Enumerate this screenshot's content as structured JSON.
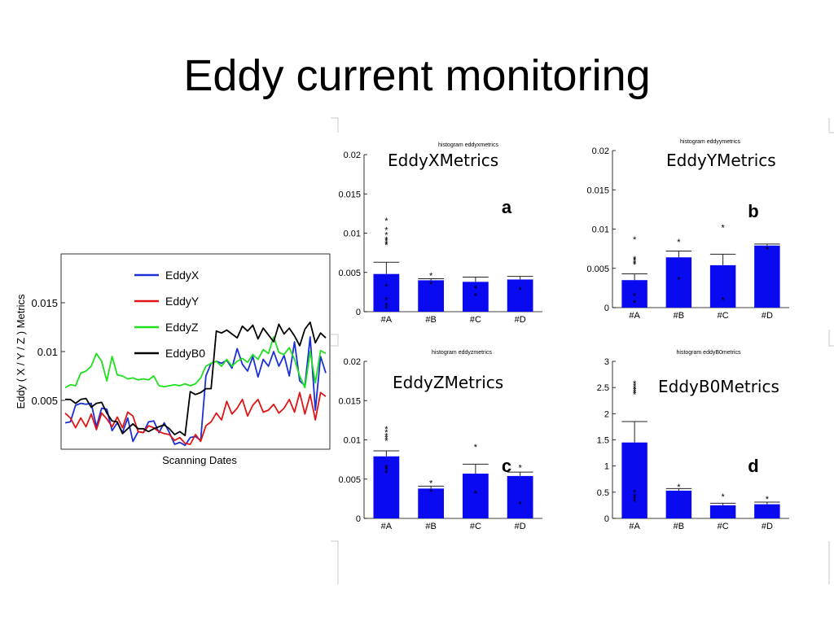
{
  "slide": {
    "title": "Eddy current monitoring"
  },
  "colors": {
    "eddyx": "#1a2fd6",
    "eddyy": "#e01414",
    "eddyz": "#1ee01e",
    "eddyb0": "#000000",
    "bar": "#0a0af0"
  },
  "chart_data": [
    {
      "type": "line",
      "title": "",
      "xlabel": "Scanning Dates",
      "ylabel": "Eddy ( X / Y / Z ) Metrics",
      "yticks": [
        0.005,
        0.01,
        0.015
      ],
      "yticklabels": [
        "0.005",
        "0.01",
        "0.015"
      ],
      "ylim": [
        0,
        0.02
      ],
      "legend_position": "top-center",
      "grid": false,
      "series": [
        {
          "name": "EddyX",
          "color": "#1a2fd6",
          "values": [
            0.0027,
            0.0028,
            0.0045,
            0.0047,
            0.0046,
            0.0047,
            0.0023,
            0.0042,
            0.0041,
            0.0019,
            0.0027,
            0.0017,
            0.0032,
            0.0008,
            0.0018,
            0.0017,
            0.0028,
            0.0029,
            0.0017,
            0.0027,
            0.0017,
            0.0005,
            0.0007,
            0.0004,
            0.0012,
            0.0013,
            0.0009,
            0.0075,
            0.0088,
            0.009,
            0.0088,
            0.0091,
            0.0083,
            0.0103,
            0.0087,
            0.008,
            0.0095,
            0.0074,
            0.0092,
            0.0085,
            0.01,
            0.0085,
            0.0096,
            0.0075,
            0.011,
            0.007,
            0.0065,
            0.0115,
            0.004,
            0.0095,
            0.0078
          ]
        },
        {
          "name": "EddyY",
          "color": "#e01414",
          "values": [
            0.0037,
            0.0032,
            0.0022,
            0.0032,
            0.0023,
            0.0036,
            0.002,
            0.0037,
            0.0031,
            0.0023,
            0.0033,
            0.0022,
            0.0038,
            0.0034,
            0.0018,
            0.0017,
            0.0024,
            0.0022,
            0.0018,
            0.0016,
            0.0015,
            0.0009,
            0.0012,
            0.0006,
            0.0005,
            0.0015,
            0.0008,
            0.0024,
            0.0028,
            0.0037,
            0.003,
            0.0049,
            0.0036,
            0.0042,
            0.0051,
            0.0034,
            0.0045,
            0.0051,
            0.0038,
            0.004,
            0.0046,
            0.0037,
            0.0042,
            0.0051,
            0.0038,
            0.0058,
            0.0036,
            0.0056,
            0.003,
            0.0058,
            0.0054
          ]
        },
        {
          "name": "EddyZ",
          "color": "#1ee01e",
          "values": [
            0.0063,
            0.0066,
            0.0065,
            0.0078,
            0.008,
            0.0085,
            0.0098,
            0.009,
            0.007,
            0.0095,
            0.0076,
            0.0075,
            0.0072,
            0.0073,
            0.0071,
            0.0072,
            0.0071,
            0.0075,
            0.0065,
            0.0064,
            0.0065,
            0.0066,
            0.0065,
            0.0067,
            0.0065,
            0.0067,
            0.0073,
            0.0085,
            0.0088,
            0.009,
            0.0085,
            0.0092,
            0.0085,
            0.009,
            0.0093,
            0.0089,
            0.0097,
            0.0092,
            0.0102,
            0.0098,
            0.0115,
            0.0099,
            0.0097,
            0.0104,
            0.0092,
            0.0075,
            0.0063,
            0.01,
            0.0068,
            0.0101,
            0.0098
          ]
        },
        {
          "name": "EddyB0",
          "color": "#000000",
          "values": [
            0.0051,
            0.0051,
            0.0047,
            0.0051,
            0.0052,
            0.0043,
            0.0047,
            0.0048,
            0.0037,
            0.0029,
            0.0028,
            0.0016,
            0.0021,
            0.0026,
            0.0021,
            0.0021,
            0.0018,
            0.0021,
            0.0023,
            0.0025,
            0.0021,
            0.0015,
            0.0018,
            0.0014,
            0.0059,
            0.0056,
            0.0058,
            0.0062,
            0.0062,
            0.0121,
            0.0119,
            0.0122,
            0.0118,
            0.0114,
            0.0126,
            0.0121,
            0.0127,
            0.0113,
            0.0124,
            0.0117,
            0.011,
            0.0128,
            0.0118,
            0.0124,
            0.0116,
            0.0106,
            0.0123,
            0.013,
            0.0109,
            0.0119,
            0.0114
          ]
        }
      ]
    },
    {
      "type": "bar",
      "panel_label": "a",
      "small_title": "histogram eddyxmetrics",
      "title": "EddyXMetrics",
      "categories": [
        "#A",
        "#B",
        "#C",
        "#D"
      ],
      "values": [
        0.0048,
        0.004,
        0.0038,
        0.0041
      ],
      "errors": [
        0.0015,
        0.0002,
        0.0006,
        0.0004
      ],
      "outliers": [
        [
          0.0116,
          0.0104,
          0.0098,
          0.0092,
          0.009,
          0.0087,
          0.0085,
          0.0032,
          0.0015,
          0.0008,
          0.0004
        ],
        [
          0.0046,
          0.0035
        ],
        [
          0.003,
          0.002
        ],
        [
          0.0028
        ]
      ],
      "ylim": [
        0,
        0.02
      ],
      "yticks": [
        0,
        0.005,
        0.01,
        0.015,
        0.02
      ],
      "yticklabels": [
        "0",
        "0.005",
        "0.01",
        "0.015",
        "0.02"
      ]
    },
    {
      "type": "bar",
      "panel_label": "b",
      "small_title": "histogram eddyymetrics",
      "title": "EddyYMetrics",
      "categories": [
        "#A",
        "#B",
        "#C",
        "#D"
      ],
      "values": [
        0.0035,
        0.0064,
        0.0054,
        0.0079
      ],
      "errors": [
        0.0008,
        0.0008,
        0.0014,
        0.0002
      ],
      "outliers": [
        [
          0.0087,
          0.0062,
          0.006,
          0.0057,
          0.0055,
          0.0015,
          0.0006
        ],
        [
          0.0084,
          0.0036
        ],
        [
          0.0102,
          0.001
        ],
        [
          0.0074
        ]
      ],
      "ylim": [
        0,
        0.02
      ],
      "yticks": [
        0,
        0.005,
        0.01,
        0.015,
        0.02
      ],
      "yticklabels": [
        "0",
        "0.005",
        "0.01",
        "0.015",
        "0.02"
      ]
    },
    {
      "type": "bar",
      "panel_label": "c",
      "small_title": "histogram eddyzmetrics",
      "title": "EddyZMetrics",
      "categories": [
        "#A",
        "#B",
        "#C",
        "#D"
      ],
      "values": [
        0.0079,
        0.0038,
        0.0057,
        0.0054
      ],
      "errors": [
        0.0007,
        0.0003,
        0.0012,
        0.0005
      ],
      "outliers": [
        [
          0.0114,
          0.011,
          0.0105,
          0.0102,
          0.0099,
          0.0065,
          0.0062,
          0.0058
        ],
        [
          0.0045,
          0.0034
        ],
        [
          0.0091,
          0.0032
        ],
        [
          0.0065,
          0.0018
        ]
      ],
      "ylim": [
        0,
        0.02
      ],
      "yticks": [
        0,
        0.005,
        0.01,
        0.015,
        0.02
      ],
      "yticklabels": [
        "0",
        "0.005",
        "0.01",
        "0.015",
        "0.02"
      ]
    },
    {
      "type": "bar",
      "panel_label": "d",
      "small_title": "histogram eddyB0metrics",
      "title": "EddyB0Metrics",
      "categories": [
        "#A",
        "#B",
        "#C",
        "#D"
      ],
      "values": [
        1.45,
        0.53,
        0.25,
        0.27
      ],
      "errors": [
        0.4,
        0.04,
        0.04,
        0.04
      ],
      "outliers": [
        [
          2.58,
          2.53,
          2.49,
          2.45,
          2.41,
          2.37,
          0.5,
          0.42,
          0.37,
          0.32
        ],
        [
          0.61
        ],
        [
          0.42
        ],
        [
          0.37
        ]
      ],
      "ylim": [
        0,
        3
      ],
      "yticks": [
        0,
        0.5,
        1,
        1.5,
        2,
        2.5,
        3
      ],
      "yticklabels": [
        "0",
        "0.5",
        "1",
        "1.5",
        "2",
        "2.5",
        "3"
      ]
    }
  ]
}
